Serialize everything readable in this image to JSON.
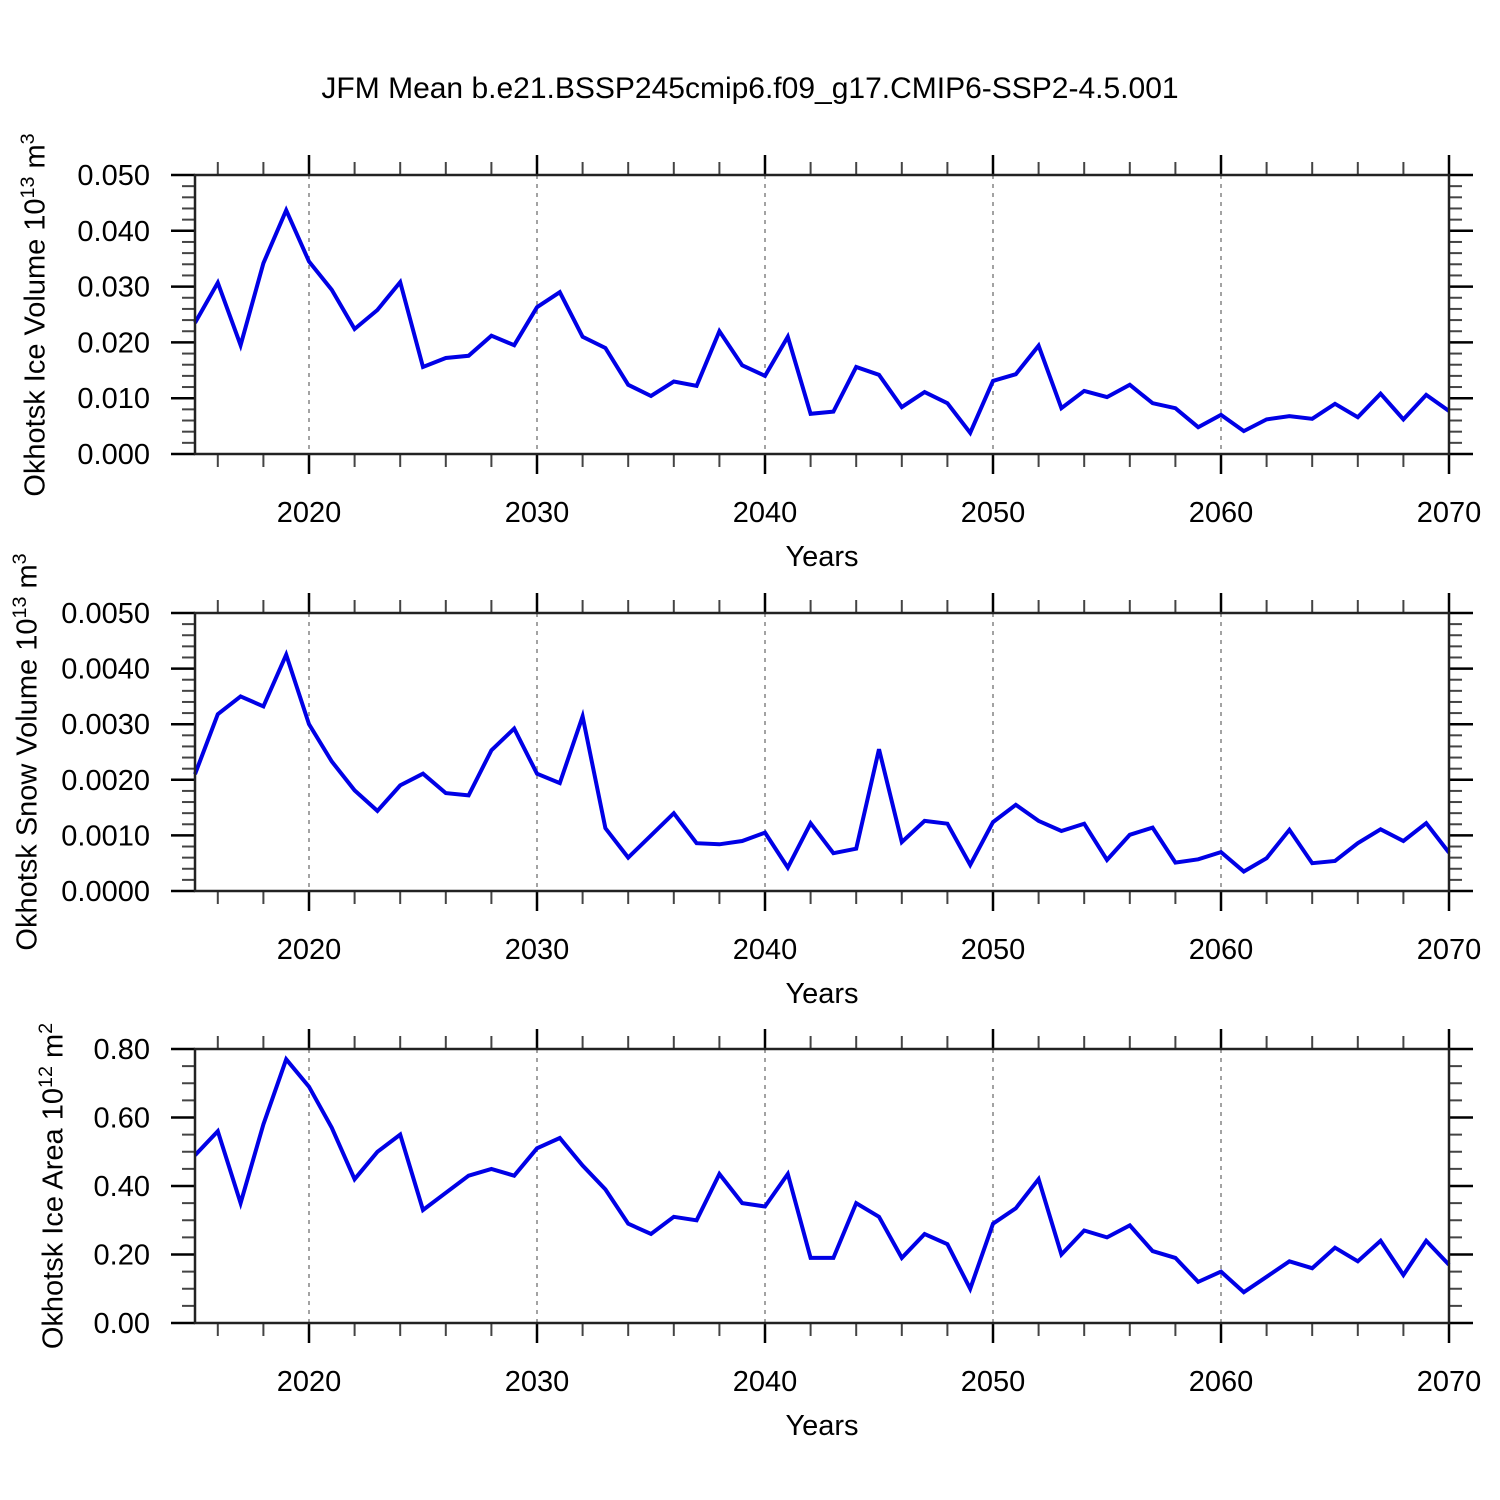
{
  "title": "JFM Mean b.e21.BSSP245cmip6.f09_g17.CMIP6-SSP2-4.5.001",
  "colors": {
    "line": "#0000e6",
    "grid": "#999999",
    "frame": "#222222",
    "minor_tick": "#444444",
    "text": "#000000"
  },
  "chart_data": [
    {
      "type": "line",
      "title": "",
      "ylabel": "Okhotsk Ice Volume 10^{13} m^{3}",
      "xlabel": "Years",
      "xlim": [
        2015,
        2070
      ],
      "ylim": [
        0,
        0.05
      ],
      "yticks": [
        0,
        0.01,
        0.02,
        0.03,
        0.04,
        0.05
      ],
      "ytick_labels": [
        "0.000",
        "0.010",
        "0.020",
        "0.030",
        "0.040",
        "0.050"
      ],
      "yminor_per_major": 5,
      "xticks": [
        2020,
        2030,
        2040,
        2050,
        2060,
        2070
      ],
      "xtick_labels": [
        "2020",
        "2030",
        "2040",
        "2050",
        "2060",
        "2070"
      ],
      "xminor_step": 2,
      "grid_x": [
        2020,
        2030,
        2040,
        2050,
        2060
      ],
      "grid_style": "dashed",
      "legend": "none",
      "x": [
        2015,
        2016,
        2017,
        2018,
        2019,
        2020,
        2021,
        2022,
        2023,
        2024,
        2025,
        2026,
        2027,
        2028,
        2029,
        2030,
        2031,
        2032,
        2033,
        2034,
        2035,
        2036,
        2037,
        2038,
        2039,
        2040,
        2041,
        2042,
        2043,
        2044,
        2045,
        2046,
        2047,
        2048,
        2049,
        2050,
        2051,
        2052,
        2053,
        2054,
        2055,
        2056,
        2057,
        2058,
        2059,
        2060,
        2061,
        2062,
        2063,
        2064,
        2065,
        2066,
        2067,
        2068,
        2069,
        2070
      ],
      "values": [
        0.0235,
        0.0307,
        0.0195,
        0.0342,
        0.0437,
        0.0345,
        0.0294,
        0.0224,
        0.0258,
        0.0308,
        0.0156,
        0.0172,
        0.0176,
        0.0212,
        0.0195,
        0.0263,
        0.029,
        0.021,
        0.019,
        0.0124,
        0.0104,
        0.013,
        0.0122,
        0.022,
        0.0159,
        0.014,
        0.021,
        0.0072,
        0.0076,
        0.0156,
        0.0142,
        0.0084,
        0.0111,
        0.0091,
        0.0038,
        0.0131,
        0.0143,
        0.0194,
        0.0082,
        0.0113,
        0.0102,
        0.0124,
        0.0091,
        0.0082,
        0.0048,
        0.007,
        0.0041,
        0.0062,
        0.0068,
        0.0063,
        0.009,
        0.0066,
        0.0108,
        0.0062,
        0.0106,
        0.0077
      ]
    },
    {
      "type": "line",
      "title": "",
      "ylabel": "Okhotsk Snow Volume 10^{13} m^{3}",
      "xlabel": "Years",
      "xlim": [
        2015,
        2070
      ],
      "ylim": [
        0,
        0.005
      ],
      "yticks": [
        0,
        0.001,
        0.002,
        0.003,
        0.004,
        0.005
      ],
      "ytick_labels": [
        "0.0000",
        "0.0010",
        "0.0020",
        "0.0030",
        "0.0040",
        "0.0050"
      ],
      "yminor_per_major": 5,
      "xticks": [
        2020,
        2030,
        2040,
        2050,
        2060,
        2070
      ],
      "xtick_labels": [
        "2020",
        "2030",
        "2040",
        "2050",
        "2060",
        "2070"
      ],
      "xminor_step": 2,
      "grid_x": [
        2020,
        2030,
        2040,
        2050,
        2060
      ],
      "grid_style": "dashed",
      "legend": "none",
      "x": [
        2015,
        2016,
        2017,
        2018,
        2019,
        2020,
        2021,
        2022,
        2023,
        2024,
        2025,
        2026,
        2027,
        2028,
        2029,
        2030,
        2031,
        2032,
        2033,
        2034,
        2035,
        2036,
        2037,
        2038,
        2039,
        2040,
        2041,
        2042,
        2043,
        2044,
        2045,
        2046,
        2047,
        2048,
        2049,
        2050,
        2051,
        2052,
        2053,
        2054,
        2055,
        2056,
        2057,
        2058,
        2059,
        2060,
        2061,
        2062,
        2063,
        2064,
        2065,
        2066,
        2067,
        2068,
        2069,
        2070
      ],
      "values": [
        0.0021,
        0.00318,
        0.0035,
        0.00332,
        0.00425,
        0.003,
        0.00233,
        0.00181,
        0.00144,
        0.0019,
        0.00211,
        0.00176,
        0.00172,
        0.00253,
        0.00292,
        0.00211,
        0.00194,
        0.00314,
        0.00113,
        0.0006,
        0.001,
        0.0014,
        0.00086,
        0.00084,
        0.0009,
        0.00105,
        0.00042,
        0.00122,
        0.00068,
        0.00076,
        0.00255,
        0.00088,
        0.00126,
        0.00121,
        0.00047,
        0.00124,
        0.00155,
        0.00126,
        0.00108,
        0.00121,
        0.00056,
        0.00101,
        0.00114,
        0.00051,
        0.00057,
        0.0007,
        0.00035,
        0.00059,
        0.0011,
        0.0005,
        0.00054,
        0.00086,
        0.00111,
        0.0009,
        0.00122,
        0.00069
      ]
    },
    {
      "type": "line",
      "title": "",
      "ylabel": "Okhotsk Ice Area 10^{12} m^{2}",
      "xlabel": "Years",
      "xlim": [
        2015,
        2070
      ],
      "ylim": [
        0,
        0.8
      ],
      "yticks": [
        0,
        0.2,
        0.4,
        0.6,
        0.8
      ],
      "ytick_labels": [
        "0.00",
        "0.20",
        "0.40",
        "0.60",
        "0.80"
      ],
      "yminor_per_major": 4,
      "xticks": [
        2020,
        2030,
        2040,
        2050,
        2060,
        2070
      ],
      "xtick_labels": [
        "2020",
        "2030",
        "2040",
        "2050",
        "2060",
        "2070"
      ],
      "xminor_step": 2,
      "grid_x": [
        2020,
        2030,
        2040,
        2050,
        2060
      ],
      "grid_style": "dashed",
      "legend": "none",
      "x": [
        2015,
        2016,
        2017,
        2018,
        2019,
        2020,
        2021,
        2022,
        2023,
        2024,
        2025,
        2026,
        2027,
        2028,
        2029,
        2030,
        2031,
        2032,
        2033,
        2034,
        2035,
        2036,
        2037,
        2038,
        2039,
        2040,
        2041,
        2042,
        2043,
        2044,
        2045,
        2046,
        2047,
        2048,
        2049,
        2050,
        2051,
        2052,
        2053,
        2054,
        2055,
        2056,
        2057,
        2058,
        2059,
        2060,
        2061,
        2062,
        2063,
        2064,
        2065,
        2066,
        2067,
        2068,
        2069,
        2070
      ],
      "values": [
        0.49,
        0.56,
        0.35,
        0.58,
        0.77,
        0.69,
        0.57,
        0.42,
        0.5,
        0.55,
        0.33,
        0.38,
        0.43,
        0.45,
        0.43,
        0.51,
        0.54,
        0.46,
        0.39,
        0.29,
        0.26,
        0.31,
        0.3,
        0.435,
        0.35,
        0.34,
        0.435,
        0.19,
        0.19,
        0.35,
        0.31,
        0.19,
        0.26,
        0.23,
        0.1,
        0.29,
        0.335,
        0.42,
        0.2,
        0.27,
        0.25,
        0.285,
        0.21,
        0.19,
        0.12,
        0.15,
        0.09,
        0.135,
        0.18,
        0.16,
        0.22,
        0.18,
        0.24,
        0.14,
        0.24,
        0.17
      ]
    }
  ]
}
